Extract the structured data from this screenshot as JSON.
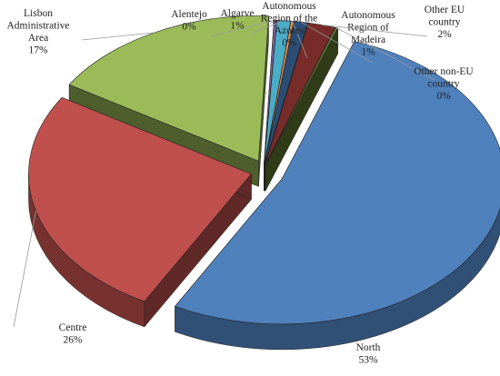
{
  "chart_data": {
    "type": "pie",
    "slices": [
      {
        "label": [
          "North"
        ],
        "pct": "53%",
        "value": 53,
        "color": "#4f81bd"
      },
      {
        "label": [
          "Centre"
        ],
        "pct": "26%",
        "value": 26,
        "color": "#c0504d"
      },
      {
        "label": [
          "Lisbon",
          "Administrative",
          "Area"
        ],
        "pct": "17%",
        "value": 17,
        "color": "#9bbb59"
      },
      {
        "label": [
          "Alentejo"
        ],
        "pct": "0%",
        "value": 0,
        "color": "#8064a2"
      },
      {
        "label": [
          "Algarve"
        ],
        "pct": "1%",
        "value": 1,
        "color": "#4bacc6"
      },
      {
        "label": [
          "Autonomous",
          "Region of the",
          "Azores"
        ],
        "pct": "0%",
        "value": 0,
        "color": "#f79646"
      },
      {
        "label": [
          "Autonomous",
          "Region of",
          "Madeira"
        ],
        "pct": "1%",
        "value": 1,
        "color": "#2c4d75"
      },
      {
        "label": [
          "Other EU",
          "country"
        ],
        "pct": "2%",
        "value": 2,
        "color": "#772c2a"
      },
      {
        "label": [
          "Other non-EU",
          "country"
        ],
        "pct": "0%",
        "value": 0,
        "color": "#5f7530"
      }
    ]
  }
}
